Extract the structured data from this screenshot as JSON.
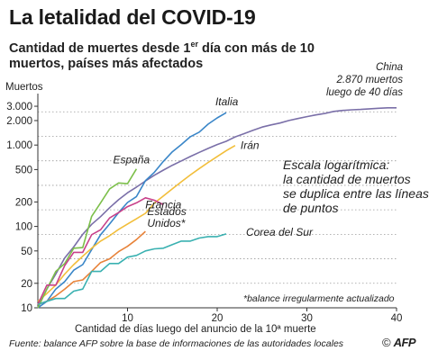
{
  "header": {
    "title": "La letalidad del COVID-19",
    "subtitle_pre": "Cantidad de muertes desde 1",
    "subtitle_sup": "er",
    "subtitle_post": " día con más de 10 muertos, países más afectados"
  },
  "annotations": {
    "log_scale_note": [
      "Escala logarítmica:",
      "la cantidad de muertos",
      "se duplica entre las líneas",
      "de puntos"
    ],
    "china_note": [
      "China",
      "2.870 muertos",
      "luego de 40 días"
    ],
    "footnote": "*balance irregularmente actualizado"
  },
  "footer": {
    "source": "Fuente: balance AFP sobre la base de informaciones de las autoridades locales",
    "copyright": "©",
    "brand": "AFP"
  },
  "chart_data": {
    "type": "line",
    "title": "La letalidad del COVID-19",
    "ylabel": "Muertos",
    "xlabel": "Cantidad de días luego del anuncio de la 10ª muerte",
    "y_scale": "log",
    "ylim": [
      10,
      3500
    ],
    "xlim": [
      0,
      40
    ],
    "y_ticks": [
      {
        "v": 10,
        "label": "10"
      },
      {
        "v": 20,
        "label": "20"
      },
      {
        "v": 50,
        "label": "50"
      },
      {
        "v": 100,
        "label": "100"
      },
      {
        "v": 200,
        "label": "200"
      },
      {
        "v": 500,
        "label": "500"
      },
      {
        "v": 1000,
        "label": "1.000"
      },
      {
        "v": 2000,
        "label": "2.000"
      },
      {
        "v": 3000,
        "label": "3.000"
      }
    ],
    "x_ticks": [
      {
        "v": 10,
        "label": "10"
      },
      {
        "v": 20,
        "label": "20"
      },
      {
        "v": 30,
        "label": "30"
      },
      {
        "v": 40,
        "label": "40"
      }
    ],
    "doubling_lines": [
      20,
      40,
      80,
      160,
      320,
      640,
      1280,
      2560
    ],
    "series": [
      {
        "name": "China",
        "label": "",
        "color": "#7a6fa8",
        "points": [
          [
            0,
            10
          ],
          [
            1,
            17
          ],
          [
            2,
            26
          ],
          [
            3,
            41
          ],
          [
            4,
            56
          ],
          [
            5,
            80
          ],
          [
            6,
            106
          ],
          [
            7,
            132
          ],
          [
            8,
            170
          ],
          [
            9,
            213
          ],
          [
            10,
            259
          ],
          [
            11,
            304
          ],
          [
            12,
            362
          ],
          [
            13,
            426
          ],
          [
            14,
            492
          ],
          [
            15,
            565
          ],
          [
            16,
            638
          ],
          [
            17,
            724
          ],
          [
            18,
            813
          ],
          [
            19,
            910
          ],
          [
            20,
            1016
          ],
          [
            21,
            1113
          ],
          [
            22,
            1259
          ],
          [
            23,
            1380
          ],
          [
            24,
            1523
          ],
          [
            25,
            1665
          ],
          [
            26,
            1770
          ],
          [
            27,
            1868
          ],
          [
            28,
            2004
          ],
          [
            29,
            2118
          ],
          [
            30,
            2236
          ],
          [
            31,
            2345
          ],
          [
            32,
            2442
          ],
          [
            33,
            2592
          ],
          [
            34,
            2663
          ],
          [
            35,
            2715
          ],
          [
            36,
            2744
          ],
          [
            37,
            2788
          ],
          [
            38,
            2835
          ],
          [
            39,
            2870
          ],
          [
            40,
            2870
          ]
        ]
      },
      {
        "name": "Italia",
        "label": "Italia",
        "color": "#3a86c8",
        "points": [
          [
            0,
            10
          ],
          [
            1,
            12
          ],
          [
            2,
            17
          ],
          [
            3,
            21
          ],
          [
            4,
            29
          ],
          [
            5,
            34
          ],
          [
            6,
            52
          ],
          [
            7,
            79
          ],
          [
            8,
            107
          ],
          [
            9,
            148
          ],
          [
            10,
            197
          ],
          [
            11,
            233
          ],
          [
            12,
            366
          ],
          [
            13,
            463
          ],
          [
            14,
            631
          ],
          [
            15,
            827
          ],
          [
            16,
            1016
          ],
          [
            17,
            1266
          ],
          [
            18,
            1441
          ],
          [
            19,
            1809
          ],
          [
            20,
            2158
          ],
          [
            21,
            2503
          ]
        ]
      },
      {
        "name": "Irán",
        "label": "Irán",
        "color": "#f2be3a",
        "points": [
          [
            0,
            12
          ],
          [
            1,
            15
          ],
          [
            2,
            19
          ],
          [
            3,
            26
          ],
          [
            4,
            34
          ],
          [
            5,
            43
          ],
          [
            6,
            54
          ],
          [
            7,
            66
          ],
          [
            8,
            77
          ],
          [
            9,
            92
          ],
          [
            10,
            107
          ],
          [
            11,
            124
          ],
          [
            12,
            145
          ],
          [
            13,
            194
          ],
          [
            14,
            237
          ],
          [
            15,
            291
          ],
          [
            16,
            354
          ],
          [
            17,
            429
          ],
          [
            18,
            514
          ],
          [
            19,
            611
          ],
          [
            20,
            724
          ],
          [
            21,
            853
          ],
          [
            22,
            988
          ]
        ]
      },
      {
        "name": "España",
        "label": "España",
        "color": "#7cbf4a",
        "points": [
          [
            0,
            10
          ],
          [
            1,
            17
          ],
          [
            2,
            28
          ],
          [
            3,
            35
          ],
          [
            4,
            54
          ],
          [
            5,
            55
          ],
          [
            6,
            133
          ],
          [
            7,
            195
          ],
          [
            8,
            289
          ],
          [
            9,
            342
          ],
          [
            10,
            335
          ],
          [
            11,
            509
          ]
        ]
      },
      {
        "name": "Francia",
        "label": "Francia",
        "color": "#c8418a",
        "points": [
          [
            0,
            11
          ],
          [
            1,
            19
          ],
          [
            2,
            19
          ],
          [
            3,
            33
          ],
          [
            4,
            48
          ],
          [
            5,
            48
          ],
          [
            6,
            79
          ],
          [
            7,
            91
          ],
          [
            8,
            127
          ],
          [
            9,
            148
          ],
          [
            10,
            175
          ],
          [
            11,
            195
          ],
          [
            12,
            225
          ],
          [
            13,
            210
          ],
          [
            14,
            185
          ]
        ]
      },
      {
        "name": "Estados Unidos*",
        "label_lines": [
          "Estados",
          "Unidos*"
        ],
        "color": "#e8833a",
        "points": [
          [
            0,
            11
          ],
          [
            1,
            12
          ],
          [
            2,
            14
          ],
          [
            3,
            17
          ],
          [
            4,
            21
          ],
          [
            5,
            22
          ],
          [
            6,
            28
          ],
          [
            7,
            36
          ],
          [
            8,
            40
          ],
          [
            9,
            49
          ],
          [
            10,
            57
          ],
          [
            11,
            69
          ],
          [
            12,
            87
          ]
        ]
      },
      {
        "name": "Corea del Sur",
        "label": "Corea del Sur",
        "color": "#3ab1b1",
        "points": [
          [
            0,
            11
          ],
          [
            1,
            12
          ],
          [
            2,
            13
          ],
          [
            3,
            13
          ],
          [
            4,
            16
          ],
          [
            5,
            17
          ],
          [
            6,
            28
          ],
          [
            7,
            28
          ],
          [
            8,
            35
          ],
          [
            9,
            35
          ],
          [
            10,
            42
          ],
          [
            11,
            44
          ],
          [
            12,
            50
          ],
          [
            13,
            53
          ],
          [
            14,
            54
          ],
          [
            15,
            60
          ],
          [
            16,
            66
          ],
          [
            17,
            66
          ],
          [
            18,
            72
          ],
          [
            19,
            75
          ],
          [
            20,
            75
          ],
          [
            21,
            81
          ]
        ]
      }
    ]
  }
}
